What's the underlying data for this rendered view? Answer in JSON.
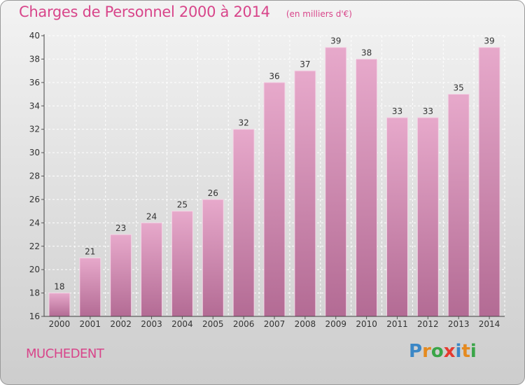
{
  "chart_data": {
    "type": "bar",
    "title": "Charges de Personnel 2000 à 2014",
    "subtitle": "(en milliers d'€)",
    "categories": [
      "2000",
      "2001",
      "2002",
      "2003",
      "2004",
      "2005",
      "2006",
      "2007",
      "2008",
      "2009",
      "2010",
      "2011",
      "2012",
      "2013",
      "2014"
    ],
    "values": [
      18,
      21,
      23,
      24,
      25,
      26,
      32,
      36,
      37,
      39,
      38,
      33,
      33,
      35,
      39
    ],
    "ylim": [
      16,
      40
    ],
    "yticks": [
      16,
      18,
      20,
      22,
      24,
      26,
      28,
      30,
      32,
      34,
      36,
      38,
      40
    ],
    "grid": true,
    "bar_color": "#d98db5",
    "bar_color_dark": "#b36b94"
  },
  "commune": "MUCHEDENT",
  "logo": {
    "text": "Proxiti",
    "letters": [
      {
        "ch": "P",
        "color": "#3b87c6"
      },
      {
        "ch": "r",
        "color": "#e58a1f"
      },
      {
        "ch": "o",
        "color": "#3aa548"
      },
      {
        "ch": "x",
        "color": "#e53a2f"
      },
      {
        "ch": "i",
        "color": "#3b87c6"
      },
      {
        "ch": "t",
        "color": "#e58a1f"
      },
      {
        "ch": "i",
        "color": "#3aa548"
      }
    ]
  }
}
